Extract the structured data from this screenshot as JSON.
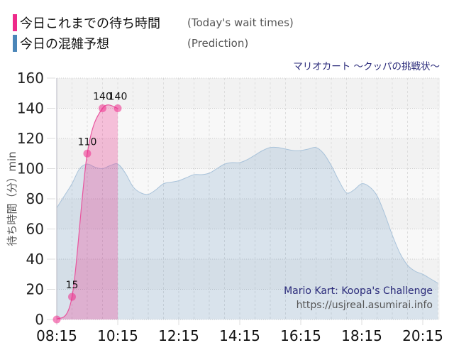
{
  "legend": [
    {
      "label_jp": "今日これまでの待ち時間",
      "label_en": "(Today's wait times)",
      "color": "#ee2a8a"
    },
    {
      "label_jp": "今日の混雑予想",
      "label_en": "(Prediction)",
      "color": "#4b86b8"
    }
  ],
  "subtitle": "マリオカート ～クッパの挑戦状～",
  "watermark": {
    "title": "Mario Kart: Koopa's Challenge",
    "url": "https://usjreal.asumirai.info"
  },
  "chart_data": {
    "type": "area",
    "title": "マリオカート ～クッパの挑戦状～",
    "xlabel": "",
    "ylabel": "待ち時間（分）min",
    "ylim": [
      0,
      160
    ],
    "yticks": [
      0,
      20,
      40,
      60,
      80,
      100,
      120,
      140,
      160
    ],
    "xticks": [
      "08:15",
      "10:15",
      "12:15",
      "14:15",
      "16:15",
      "18:15",
      "20:15"
    ],
    "grid": true,
    "legend_position": "top-left",
    "series": [
      {
        "name": "今日これまでの待ち時間 (Today's wait times)",
        "color": "#ee2a8a",
        "x": [
          "08:15",
          "08:45",
          "09:15",
          "09:45",
          "10:15"
        ],
        "values": [
          0,
          15,
          110,
          140,
          140
        ],
        "labels": [
          "",
          "15",
          "110",
          "140",
          "140"
        ]
      },
      {
        "name": "今日の混雑予想 (Prediction)",
        "color": "#4b86b8",
        "x": [
          "08:15",
          "08:30",
          "08:45",
          "09:00",
          "09:15",
          "09:30",
          "09:45",
          "10:00",
          "10:15",
          "10:30",
          "10:45",
          "11:00",
          "11:15",
          "11:30",
          "11:45",
          "12:00",
          "12:15",
          "12:30",
          "12:45",
          "13:00",
          "13:15",
          "13:30",
          "13:45",
          "14:00",
          "14:15",
          "14:30",
          "14:45",
          "15:00",
          "15:15",
          "15:30",
          "15:45",
          "16:00",
          "16:15",
          "16:30",
          "16:45",
          "17:00",
          "17:15",
          "17:30",
          "17:45",
          "18:00",
          "18:15",
          "18:30",
          "18:45",
          "19:00",
          "19:15",
          "19:30",
          "19:45",
          "20:00",
          "20:15",
          "20:30",
          "20:45"
        ],
        "values": [
          74,
          82,
          90,
          100,
          103,
          101,
          100,
          102,
          103,
          97,
          88,
          84,
          83,
          86,
          90,
          91,
          92,
          94,
          96,
          96,
          97,
          100,
          103,
          104,
          104,
          106,
          109,
          112,
          114,
          114,
          113,
          112,
          112,
          113,
          114,
          110,
          102,
          92,
          84,
          86,
          90,
          88,
          82,
          70,
          56,
          44,
          36,
          32,
          30,
          27,
          24
        ]
      }
    ]
  }
}
